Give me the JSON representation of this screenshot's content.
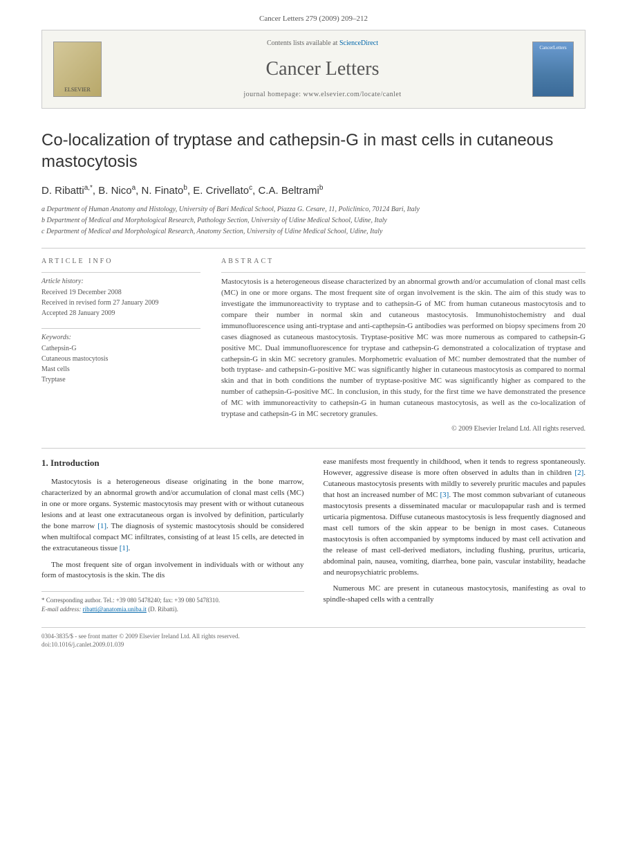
{
  "header": {
    "citation": "Cancer Letters 279 (2009) 209–212"
  },
  "banner": {
    "publisher": "ELSEVIER",
    "contents_prefix": "Contents lists available at ",
    "contents_link": "ScienceDirect",
    "journal_name": "Cancer Letters",
    "homepage_label": "journal homepage: www.elsevier.com/locate/canlet",
    "cover_label": "CancerLetters"
  },
  "title": "Co-localization of tryptase and cathepsin-G in mast cells in cutaneous mastocytosis",
  "authors_html": "D. Ribatti <sup>a,*</sup>, B. Nico <sup>a</sup>, N. Finato <sup>b</sup>, E. Crivellato <sup>c</sup>, C.A. Beltrami <sup>b</sup>",
  "affiliations": {
    "a": "a Department of Human Anatomy and Histology, University of Bari Medical School, Piazza G. Cesare, 11, Policlinico, 70124 Bari, Italy",
    "b": "b Department of Medical and Morphological Research, Pathology Section, University of Udine Medical School, Udine, Italy",
    "c": "c Department of Medical and Morphological Research, Anatomy Section, University of Udine Medical School, Udine, Italy"
  },
  "article_info": {
    "heading": "ARTICLE INFO",
    "history_label": "Article history:",
    "received": "Received 19 December 2008",
    "revised": "Received in revised form 27 January 2009",
    "accepted": "Accepted 28 January 2009",
    "keywords_label": "Keywords:",
    "keywords": [
      "Cathepsin-G",
      "Cutaneous mastocytosis",
      "Mast cells",
      "Tryptase"
    ]
  },
  "abstract": {
    "heading": "ABSTRACT",
    "text": "Mastocytosis is a heterogeneous disease characterized by an abnormal growth and/or accumulation of clonal mast cells (MC) in one or more organs. The most frequent site of organ involvement is the skin. The aim of this study was to investigate the immunoreactivity to tryptase and to cathepsin-G of MC from human cutaneous mastocytosis and to compare their number in normal skin and cutaneous mastocytosis. Immunohistochemistry and dual immunofluorescence using anti-tryptase and anti-capthepsin-G antibodies was performed on biopsy specimens from 20 cases diagnosed as cutaneous mastocytosis. Tryptase-positive MC was more numerous as compared to cathepsin-G positive MC. Dual immunofluorescence for tryptase and cathepsin-G demonstrated a colocalization of tryptase and cathepsin-G in skin MC secretory granules. Morphometric evaluation of MC number demostrated that the number of both tryptase- and cathepsin-G-positive MC was significantly higher in cutaneous mastocytosis as compared to normal skin and that in both conditions the number of tryptase-positive MC was significantly higher as compared to the number of cathepsin-G-positive MC. In conclusion, in this study, for the first time we have demonstrated the presence of MC with immunoreactivity to cathepsin-G in human cutaneous mastocytosis, as well as the co-localization of tryptase and cathepsin-G in MC secretory granules.",
    "copyright": "© 2009 Elsevier Ireland Ltd. All rights reserved."
  },
  "body": {
    "section_number": "1.",
    "section_title": "Introduction",
    "p1": "Mastocytosis is a heterogeneous disease originating in the bone marrow, characterized by an abnormal growth and/or accumulation of clonal mast cells (MC) in one or more organs. Systemic mastocytosis may present with or without cutaneous lesions and at least one extracutaneous organ is involved by definition, particularly the bone marrow ",
    "p1_ref": "[1]",
    "p1b": ". The diagnosis of systemic mastocytosis should be considered when multifocal compact MC infiltrates, consisting of at least 15 cells, are detected in the extracutaneous tissue ",
    "p1b_ref": "[1]",
    "p1c": ".",
    "p2": "The most frequent site of organ involvement in individuals with or without any form of mastocytosis is the skin. The dis",
    "p3a": "ease manifests most frequently in childhood, when it tends to regress spontaneously. However, aggressive disease is more often observed in adults than in children ",
    "p3a_ref": "[2]",
    "p3b": ". Cutaneous mastocytosis presents with mildly to severely pruritic macules and papules that host an increased number of MC ",
    "p3b_ref": "[3]",
    "p3c": ". The most common subvariant of cutaneous mastocytosis presents a disseminated macular or maculopapular rash and is termed urticaria pigmentosa. Diffuse cutaneous mastocytosis is less frequently diagnosed and mast cell tumors of the skin appear to be benign in most cases. Cutaneous mastocytosis is often accompanied by symptoms induced by mast cell activation and the release of mast cell-derived mediators, including flushing, pruritus, urticaria, abdominal pain, nausea, vomiting, diarrhea, bone pain, vascular instability, headache and neuropsychiatric problems.",
    "p4": "Numerous MC are present in cutaneous mastocytosis, manifesting as oval to spindle-shaped cells with a centrally"
  },
  "corresponding": {
    "label": "* Corresponding author. Tel.: +39 080 5478240; fax: +39 080 5478310.",
    "email_label": "E-mail address:",
    "email": "ribatti@anatomia.uniba.it",
    "email_name": "(D. Ribatti)."
  },
  "footer": {
    "line1": "0304-3835/$ - see front matter © 2009 Elsevier Ireland Ltd. All rights reserved.",
    "line2": "doi:10.1016/j.canlet.2009.01.039"
  },
  "colors": {
    "text": "#333333",
    "muted": "#666666",
    "link": "#0066aa",
    "border": "#cccccc",
    "banner_bg": "#f5f5f0"
  }
}
